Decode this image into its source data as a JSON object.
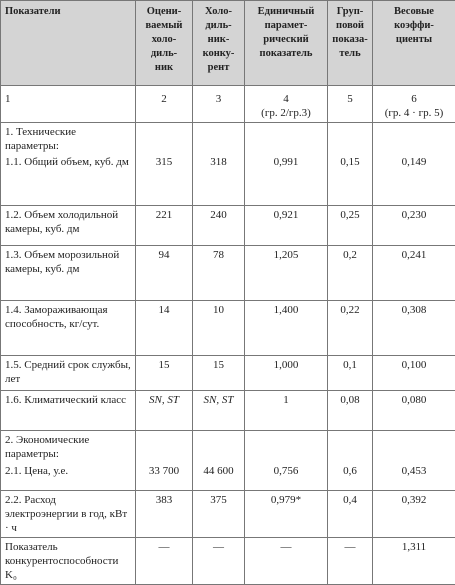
{
  "table": {
    "header": [
      [
        "Показатели"
      ],
      [
        "Оцени-",
        "ваемый",
        "холо-",
        "диль-",
        "ник"
      ],
      [
        "Холо-",
        "диль-",
        "ник-",
        "конку-",
        "рент"
      ],
      [
        "Единичный",
        "парамет-",
        "рический",
        "показатель"
      ],
      [
        "Груп-",
        "повой",
        "показа-",
        "тель"
      ],
      [
        "Весовые",
        "коэффи-",
        "циенты"
      ]
    ],
    "numbering": [
      [
        "1"
      ],
      [
        "2"
      ],
      [
        "3"
      ],
      [
        "4",
        "(гр. 2/гр.3)"
      ],
      [
        "5"
      ],
      [
        "6",
        "(гр. 4 · гр. 5)"
      ]
    ],
    "rows": [
      [
        "1. Технические параметры:"
      ],
      [
        "1.1. Общий объем, куб. дм",
        "315",
        "318",
        "0,991",
        "0,15",
        "0,149"
      ],
      [
        "1.2. Объем холодильной камеры, куб. дм",
        "221",
        "240",
        "0,921",
        "0,25",
        "0,230"
      ],
      [
        "1.3. Объем морозильной камеры, куб. дм",
        "94",
        "78",
        "1,205",
        "0,2",
        "0,241"
      ],
      [
        "1.4. Замораживающая способность, кг/сут.",
        "14",
        "10",
        "1,400",
        "0,22",
        "0,308"
      ],
      [
        "1.5. Средний срок службы, лет",
        "15",
        "15",
        "1,000",
        "0,1",
        "0,100"
      ],
      [
        "1.6. Климатический класс",
        "SN, ST",
        "SN, ST",
        "1",
        "0,08",
        "0,080"
      ],
      [
        "2. Экономические параметры:"
      ],
      [
        "2.1. Цена, у.е.",
        "33 700",
        "44 600",
        "0,756",
        "0,6",
        "0,453"
      ],
      [
        "2.2. Расход электроэнергии в год, кВт · ч",
        "383",
        "375",
        "0,979*",
        "0,4",
        "0,392"
      ],
      [
        "Показатель конкурентоспособности K₀",
        "—",
        "—",
        "—",
        "—",
        "1,311"
      ]
    ]
  }
}
